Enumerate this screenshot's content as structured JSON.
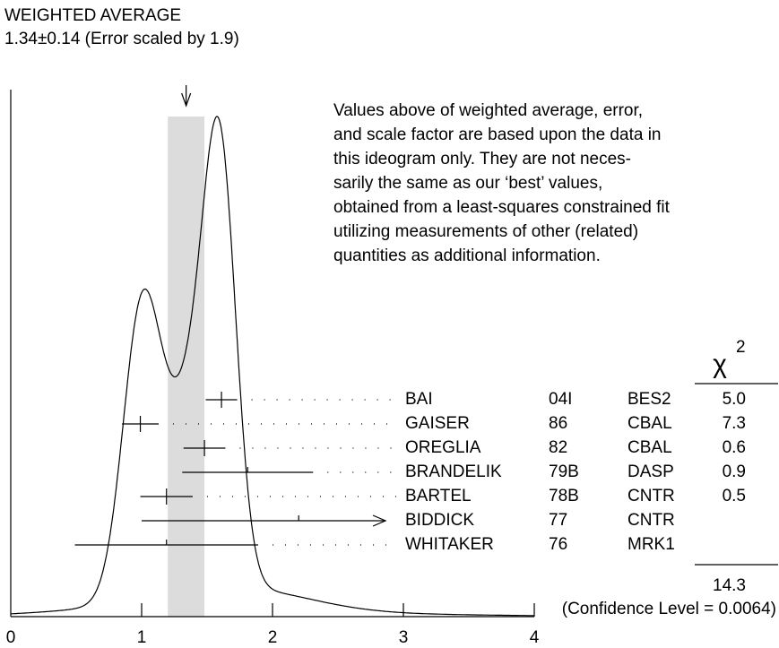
{
  "chart_data": {
    "type": "ideogram",
    "title": "WEIGHTED AVERAGE",
    "average": {
      "value": 1.34,
      "error": 0.14,
      "scale_factor": 1.9,
      "label": "1.34±0.14 (Error scaled by 1.9)"
    },
    "note": [
      "Values above of weighted average, error,",
      "and scale factor are based upon the data in",
      "this ideogram only.  They are not neces-",
      "sarily the same as our ‘best’ values,",
      "obtained from a least-squares constrained fit",
      "utilizing measurements of other (related)",
      "quantities as additional information."
    ],
    "chi2_symbol": "χ",
    "chi2_exponent": "2",
    "measurements": [
      {
        "name": "BAI",
        "year": "04I",
        "technique": "BES2",
        "value": 1.61,
        "error": 0.12,
        "chi2": 5.0,
        "chi2_label": "5.0"
      },
      {
        "name": "GAISER",
        "year": "86",
        "technique": "CBAL",
        "value": 0.99,
        "error": 0.14,
        "chi2": 7.3
      },
      {
        "name": "OREGLIA",
        "year": "82",
        "technique": "CBAL",
        "value": 1.48,
        "error": 0.16,
        "chi2": 0.6
      },
      {
        "name": "BRANDELIK",
        "year": "79B",
        "technique": "DASP",
        "value": 1.81,
        "error": 0.5,
        "chi2": 0.9
      },
      {
        "name": "BARTEL",
        "year": "78B",
        "technique": "CNTR",
        "value": 1.19,
        "error": 0.2,
        "chi2": 0.5
      },
      {
        "name": "BIDDICK",
        "year": "77",
        "technique": "CNTR",
        "value": 2.2,
        "error": 1.2,
        "chi2": null
      },
      {
        "name": "WHITAKER",
        "year": "76",
        "technique": "MRK1",
        "value": 1.19,
        "error": 0.7,
        "chi2": null
      }
    ],
    "chi2_total": 14.3,
    "confidence_level": "(Confidence Level = 0.0064)",
    "xlim": [
      0,
      4
    ],
    "xticks": [
      0,
      1,
      2,
      3,
      4
    ]
  }
}
